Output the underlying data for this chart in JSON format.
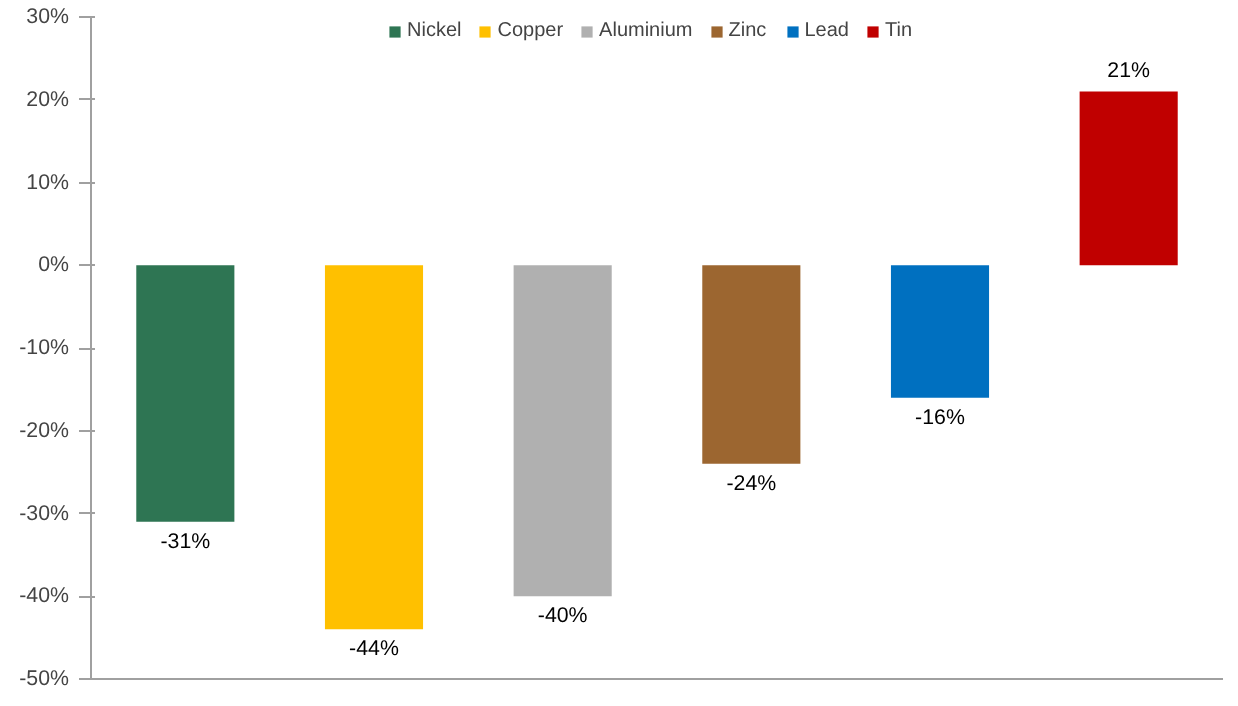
{
  "chart_data": {
    "type": "bar",
    "categories": [
      null,
      null,
      null,
      null,
      null,
      null
    ],
    "series": [
      {
        "name": "Nickel",
        "color": "#2e7553",
        "values": [
          -31,
          null,
          null,
          null,
          null,
          null
        ],
        "value_labels": [
          "-31%",
          null,
          null,
          null,
          null,
          null
        ]
      },
      {
        "name": "Copper",
        "color": "#ffc000",
        "values": [
          null,
          -44,
          null,
          null,
          null,
          null
        ],
        "value_labels": [
          null,
          "-44%",
          null,
          null,
          null,
          null
        ]
      },
      {
        "name": "Aluminium",
        "color": "#b0b0b0",
        "values": [
          null,
          null,
          -40,
          null,
          null,
          null
        ],
        "value_labels": [
          null,
          null,
          "-40%",
          null,
          null,
          null
        ]
      },
      {
        "name": "Zinc",
        "color": "#9c6630",
        "values": [
          null,
          null,
          null,
          -24,
          null,
          null
        ],
        "value_labels": [
          null,
          null,
          null,
          "-24%",
          null,
          null
        ]
      },
      {
        "name": "Lead",
        "color": "#0070c0",
        "values": [
          null,
          null,
          null,
          null,
          -16,
          null
        ],
        "value_labels": [
          null,
          null,
          null,
          null,
          "-16%",
          null
        ]
      },
      {
        "name": "Tin",
        "color": "#c00000",
        "values": [
          null,
          null,
          null,
          null,
          null,
          21
        ],
        "value_labels": [
          null,
          null,
          null,
          null,
          null,
          "21%"
        ]
      }
    ],
    "ylim": [
      -50,
      30
    ],
    "yticks": [
      {
        "value": -50,
        "label": "-50%"
      },
      {
        "value": -40,
        "label": "-40%"
      },
      {
        "value": -30,
        "label": "-30%"
      },
      {
        "value": -20,
        "label": "-20%"
      },
      {
        "value": -10,
        "label": "-10%"
      },
      {
        "value": 0,
        "label": "0%"
      },
      {
        "value": 10,
        "label": "10%"
      },
      {
        "value": 20,
        "label": "20%"
      },
      {
        "value": 30,
        "label": "30%"
      }
    ],
    "legend": "top"
  }
}
